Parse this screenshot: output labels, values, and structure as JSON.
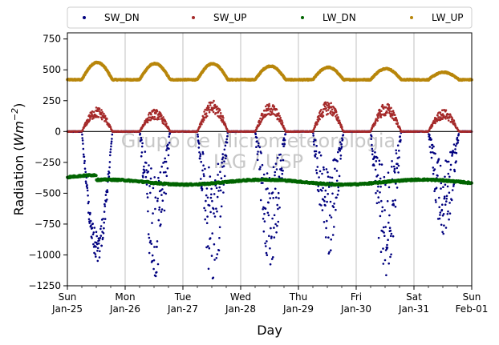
{
  "chart_data": {
    "type": "scatter",
    "xlabel": "Day",
    "ylabel_prefix": "Radiation (",
    "ylabel_unit_base": "Wm",
    "ylabel_unit_exp": "−2",
    "ylabel_suffix": ")",
    "ylim": [
      -1250,
      800
    ],
    "yticks": [
      -1250,
      -1000,
      -750,
      -500,
      -250,
      0,
      250,
      500,
      750
    ],
    "ytick_labels": [
      "−1250",
      "−1000",
      "−750",
      "−500",
      "−250",
      "0",
      "250",
      "500",
      "750"
    ],
    "xlim_days": [
      0,
      7
    ],
    "xticks": [
      {
        "day": 0,
        "line1": "Sun",
        "line2": "Jan-25"
      },
      {
        "day": 1,
        "line1": "Mon",
        "line2": "Jan-26"
      },
      {
        "day": 2,
        "line1": "Tue",
        "line2": "Jan-27"
      },
      {
        "day": 3,
        "line1": "Wed",
        "line2": "Jan-28"
      },
      {
        "day": 4,
        "line1": "Thu",
        "line2": "Jan-29"
      },
      {
        "day": 5,
        "line1": "Fri",
        "line2": "Jan-30"
      },
      {
        "day": 6,
        "line1": "Sat",
        "line2": "Jan-31"
      },
      {
        "day": 7,
        "line1": "Sun",
        "line2": "Feb-01"
      }
    ],
    "grid": "vertical",
    "zero_line": true,
    "legend_placement": "top-outside",
    "watermark": [
      "Grupo de Micrometeorologia",
      "IAG / USP"
    ],
    "series": [
      {
        "name": "SW_DN",
        "color": "#00007f",
        "pattern": "sw_dn"
      },
      {
        "name": "SW_UP",
        "color": "#a52a2a",
        "pattern": "sw_up"
      },
      {
        "name": "LW_DN",
        "color": "#006400",
        "pattern": "lw_dn"
      },
      {
        "name": "LW_UP",
        "color": "#b8860b",
        "pattern": "lw_up"
      }
    ],
    "daily_peaks": {
      "sw_dn_min": [
        -1060,
        -1180,
        -1230,
        -1100,
        -1000,
        -1170,
        -850
      ],
      "sw_up_max": [
        200,
        180,
        250,
        230,
        250,
        230,
        180
      ],
      "lw_up_max": [
        560,
        550,
        550,
        530,
        520,
        510,
        480
      ]
    }
  }
}
